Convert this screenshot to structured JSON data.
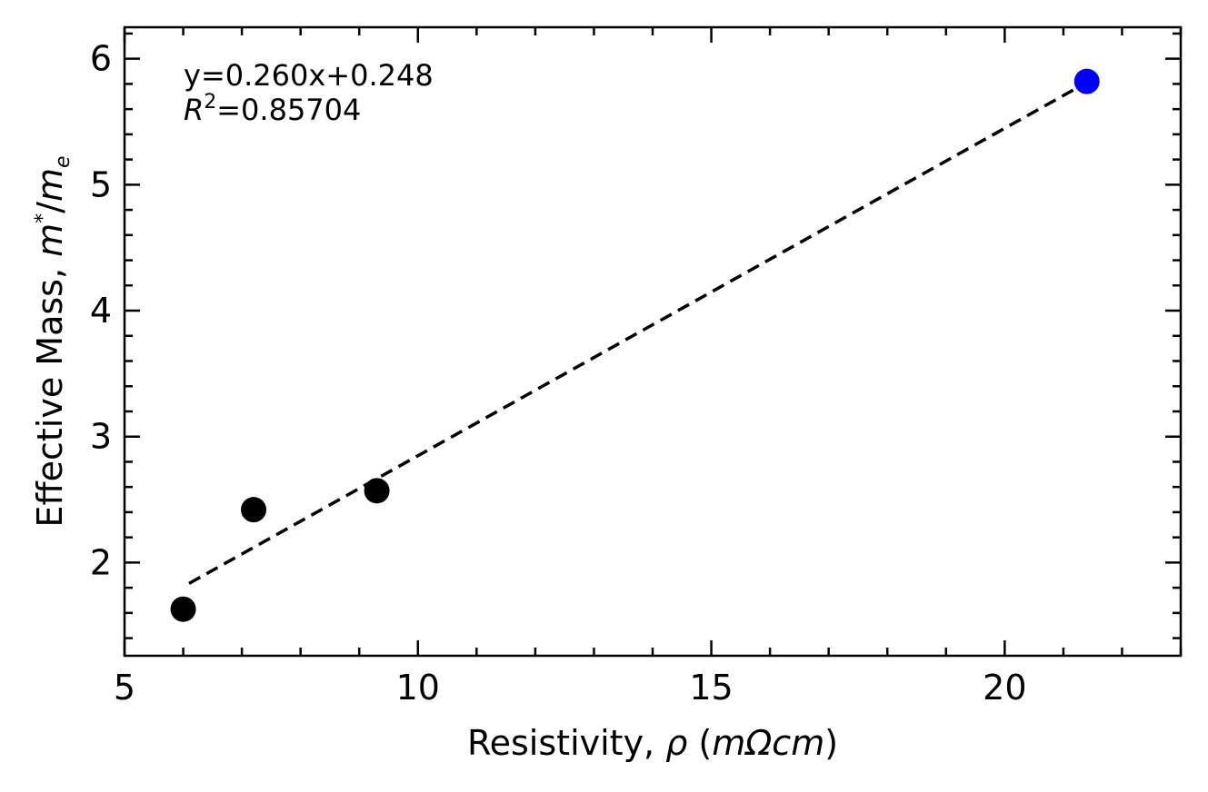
{
  "chart_data": {
    "type": "scatter",
    "xlabel": {
      "main": "Resistivity, ",
      "symbol": "ρ",
      "open": " (",
      "unit": "mΩcm",
      "close": ")"
    },
    "ylabel": {
      "main": "Effective Mass, ",
      "num": "m",
      "star": "*",
      "slash": "/",
      "den": "m",
      "den_sub": "e"
    },
    "xlim": [
      5,
      23
    ],
    "ylim": [
      1.26,
      6.25
    ],
    "xticks": [
      5,
      10,
      15,
      20
    ],
    "yticks": [
      2,
      3,
      4,
      5,
      6
    ],
    "xtick_labels": [
      "5",
      "10",
      "15",
      "20"
    ],
    "ytick_labels": [
      "2",
      "3",
      "4",
      "5",
      "6"
    ],
    "grid": false,
    "series": [
      {
        "color": "#000000",
        "points": [
          {
            "x": 6.0,
            "y": 1.63
          },
          {
            "x": 7.2,
            "y": 2.42
          },
          {
            "x": 9.3,
            "y": 2.57
          }
        ]
      },
      {
        "color": "#0000ff",
        "points": [
          {
            "x": 21.4,
            "y": 5.82
          }
        ]
      }
    ],
    "fit": {
      "slope": 0.26,
      "intercept": 0.248,
      "x_range": [
        6.1,
        21.2
      ],
      "style": "dashed"
    },
    "annotation": {
      "equation": "y=0.260x+0.248",
      "r2_symbol": "R",
      "r2_exponent": "2",
      "r2_value": "=0.85704"
    }
  }
}
